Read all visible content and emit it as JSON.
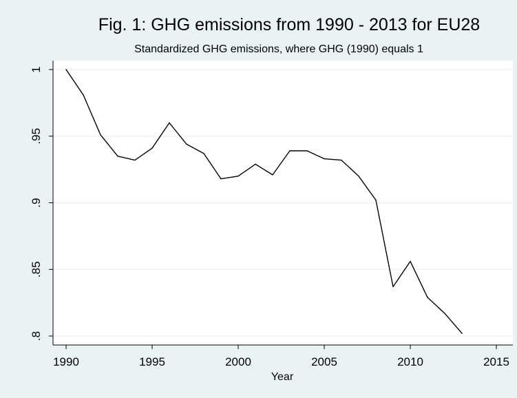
{
  "chart_data": {
    "type": "line",
    "title": "Fig. 1: GHG emissions from 1990 - 2013 for EU28",
    "subtitle": "Standardized GHG emissions, where GHG (1990) equals 1",
    "xlabel": "Year",
    "ylabel": "",
    "xlim": [
      1990,
      2015
    ],
    "ylim": [
      0.8,
      1.0
    ],
    "x_ticks": [
      1990,
      1995,
      2000,
      2005,
      2010,
      2015
    ],
    "x_tick_labels": [
      "1990",
      "1995",
      "2000",
      "2005",
      "2010",
      "2015"
    ],
    "y_ticks": [
      0.8,
      0.85,
      0.9,
      0.95,
      1.0
    ],
    "y_tick_labels": [
      ".8",
      ".85",
      ".9",
      ".95",
      "1"
    ],
    "grid": "horizontal",
    "series": [
      {
        "color": "#000000",
        "x": [
          1990,
          1991,
          1992,
          1993,
          1994,
          1995,
          1996,
          1997,
          1998,
          1999,
          2000,
          2001,
          2002,
          2003,
          2004,
          2005,
          2006,
          2007,
          2008,
          2009,
          2010,
          2011,
          2012,
          2013
        ],
        "values": [
          1.0,
          0.981,
          0.951,
          0.935,
          0.932,
          0.941,
          0.96,
          0.944,
          0.937,
          0.918,
          0.92,
          0.929,
          0.921,
          0.939,
          0.939,
          0.933,
          0.932,
          0.92,
          0.902,
          0.837,
          0.856,
          0.829,
          0.817,
          0.802
        ]
      }
    ]
  }
}
